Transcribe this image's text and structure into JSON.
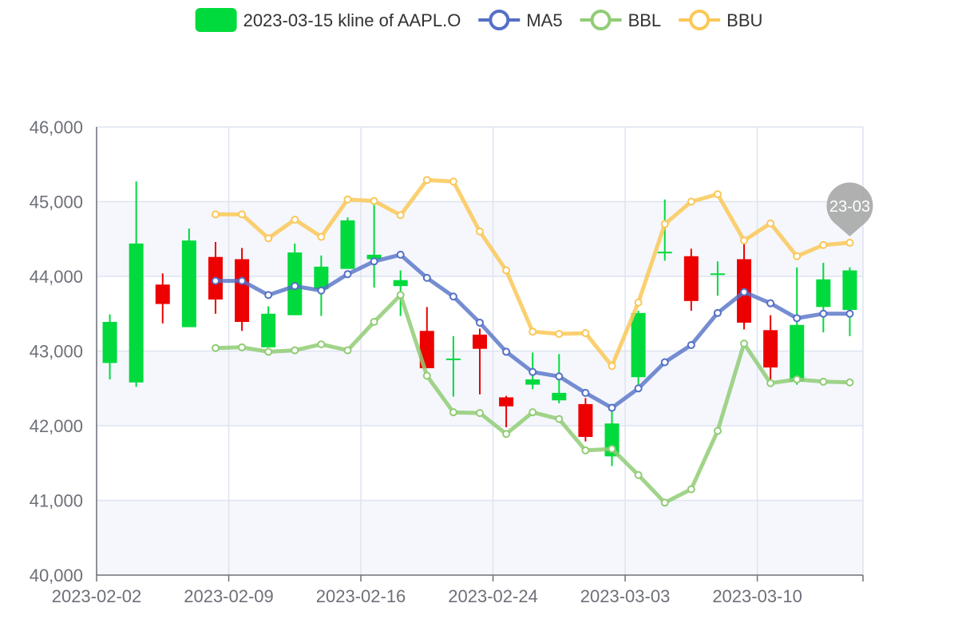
{
  "chart_data": {
    "type": "candlestick",
    "title": "",
    "legend": [
      {
        "label": "2023-03-15 kline of AAPL.O",
        "color": "#00da3c",
        "kind": "box"
      },
      {
        "label": "MA5",
        "color": "#5470c6",
        "kind": "line"
      },
      {
        "label": "BBL",
        "color": "#91cc75",
        "kind": "line"
      },
      {
        "label": "BBU",
        "color": "#fac858",
        "kind": "line"
      }
    ],
    "legend_position": "top-center",
    "grid": true,
    "y_axis": {
      "min": 40000,
      "max": 46000,
      "ticks": [
        "40,000",
        "41,000",
        "42,000",
        "43,000",
        "44,000",
        "45,000",
        "46,000"
      ]
    },
    "x_ticks": [
      {
        "label": "2023-02-02",
        "index": 0
      },
      {
        "label": "2023-02-09",
        "index": 5
      },
      {
        "label": "2023-02-16",
        "index": 10
      },
      {
        "label": "2023-02-24",
        "index": 15
      },
      {
        "label": "2023-03-03",
        "index": 20
      },
      {
        "label": "2023-03-10",
        "index": 25
      }
    ],
    "up_color": "#00da3c",
    "down_color": "#ec0000",
    "candles": [
      {
        "open": 42840,
        "close": 43390,
        "low": 42620,
        "high": 43490
      },
      {
        "open": 42580,
        "close": 44440,
        "low": 42520,
        "high": 45270
      },
      {
        "open": 43890,
        "close": 43630,
        "low": 43370,
        "high": 44040
      },
      {
        "open": 43320,
        "close": 44480,
        "low": 43320,
        "high": 44640
      },
      {
        "open": 44260,
        "close": 43690,
        "low": 43500,
        "high": 44460
      },
      {
        "open": 44230,
        "close": 43390,
        "low": 43270,
        "high": 44380
      },
      {
        "open": 43050,
        "close": 43500,
        "low": 43050,
        "high": 43600
      },
      {
        "open": 43480,
        "close": 44320,
        "low": 43480,
        "high": 44440
      },
      {
        "open": 43830,
        "close": 44130,
        "low": 43470,
        "high": 44280
      },
      {
        "open": 44100,
        "close": 44750,
        "low": 44100,
        "high": 44790
      },
      {
        "open": 44230,
        "close": 44290,
        "low": 43850,
        "high": 45030
      },
      {
        "open": 43870,
        "close": 43950,
        "low": 43470,
        "high": 44080
      },
      {
        "open": 43270,
        "close": 42770,
        "low": 42770,
        "high": 43590
      },
      {
        "open": 42890,
        "close": 42900,
        "low": 42390,
        "high": 43200
      },
      {
        "open": 43220,
        "close": 43030,
        "low": 42420,
        "high": 43300
      },
      {
        "open": 42380,
        "close": 42260,
        "low": 41980,
        "high": 42400
      },
      {
        "open": 42550,
        "close": 42620,
        "low": 42490,
        "high": 42980
      },
      {
        "open": 42340,
        "close": 42440,
        "low": 42300,
        "high": 42960
      },
      {
        "open": 42290,
        "close": 41850,
        "low": 41790,
        "high": 42370
      },
      {
        "open": 41590,
        "close": 42030,
        "low": 41460,
        "high": 42240
      },
      {
        "open": 42650,
        "close": 43510,
        "low": 42490,
        "high": 43540
      },
      {
        "open": 44310,
        "close": 44330,
        "low": 44210,
        "high": 45030
      },
      {
        "open": 44270,
        "close": 43670,
        "low": 43540,
        "high": 44370
      },
      {
        "open": 44020,
        "close": 44040,
        "low": 43740,
        "high": 44200
      },
      {
        "open": 44230,
        "close": 43380,
        "low": 43290,
        "high": 44510
      },
      {
        "open": 43280,
        "close": 42780,
        "low": 42560,
        "high": 43480
      },
      {
        "open": 42590,
        "close": 43350,
        "low": 42550,
        "high": 44120
      },
      {
        "open": 43590,
        "close": 43960,
        "low": 43250,
        "high": 44180
      },
      {
        "open": 43550,
        "close": 44080,
        "low": 43200,
        "high": 44120
      }
    ],
    "series": [
      {
        "name": "MA5",
        "color": "#5470c6",
        "start_index": 4,
        "values": [
          43940,
          43940,
          43750,
          43870,
          43810,
          44030,
          44200,
          44290,
          43980,
          43730,
          43380,
          42990,
          42720,
          42660,
          42440,
          42240,
          42500,
          42850,
          43080,
          43510,
          43790,
          43640,
          43440,
          43500,
          43500
        ]
      },
      {
        "name": "BBL",
        "color": "#91cc75",
        "start_index": 4,
        "values": [
          43040,
          43050,
          42990,
          43010,
          43090,
          43010,
          43390,
          43750,
          42670,
          42180,
          42170,
          41890,
          42180,
          42090,
          41670,
          41690,
          41340,
          40970,
          41150,
          41930,
          43100,
          42570,
          42620,
          42590,
          42580
        ]
      },
      {
        "name": "BBU",
        "color": "#fac858",
        "start_index": 4,
        "values": [
          44830,
          44830,
          44510,
          44760,
          44530,
          45030,
          45010,
          44820,
          45290,
          45270,
          44600,
          44080,
          43260,
          43230,
          43240,
          42800,
          43650,
          44700,
          45000,
          45100,
          44480,
          44710,
          44270,
          44420,
          44450
        ]
      }
    ],
    "marker": {
      "label": "23-03",
      "series": "BBU",
      "index": 28,
      "color": "#a7a7a7"
    }
  }
}
